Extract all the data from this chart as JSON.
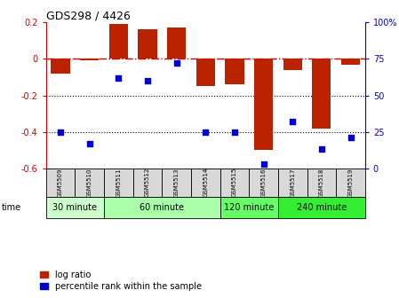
{
  "title": "GDS298 / 4426",
  "samples": [
    "GSM5509",
    "GSM5510",
    "GSM5511",
    "GSM5512",
    "GSM5513",
    "GSM5514",
    "GSM5515",
    "GSM5516",
    "GSM5517",
    "GSM5518",
    "GSM5519"
  ],
  "log_ratio": [
    -0.08,
    -0.01,
    0.19,
    0.16,
    0.17,
    -0.15,
    -0.14,
    -0.5,
    -0.06,
    -0.38,
    -0.03
  ],
  "percentile": [
    25,
    17,
    62,
    60,
    72,
    25,
    25,
    3,
    32,
    13,
    21
  ],
  "bar_color": "#bb2200",
  "dot_color": "#0000cc",
  "ylim_left": [
    -0.6,
    0.2
  ],
  "ylim_right": [
    0,
    100
  ],
  "groups": [
    {
      "label": "30 minute",
      "start": 0,
      "end": 2,
      "color": "#ccffcc"
    },
    {
      "label": "60 minute",
      "start": 2,
      "end": 6,
      "color": "#aaffaa"
    },
    {
      "label": "120 minute",
      "start": 6,
      "end": 8,
      "color": "#66ff66"
    },
    {
      "label": "240 minute",
      "start": 8,
      "end": 11,
      "color": "#33ee33"
    }
  ],
  "hline_color": "#cc0000",
  "dotline_color": "#000000",
  "grid_lines": [
    -0.2,
    -0.4
  ],
  "right_ticks": [
    0,
    25,
    50,
    75,
    100
  ],
  "right_tick_labels": [
    "0",
    "25",
    "50",
    "75",
    "100%"
  ],
  "left_ticks": [
    0.2,
    0.0,
    -0.2,
    -0.4,
    -0.6
  ],
  "left_tick_labels": [
    "0.2",
    "0",
    "-0.2",
    "-0.4",
    "-0.6"
  ]
}
